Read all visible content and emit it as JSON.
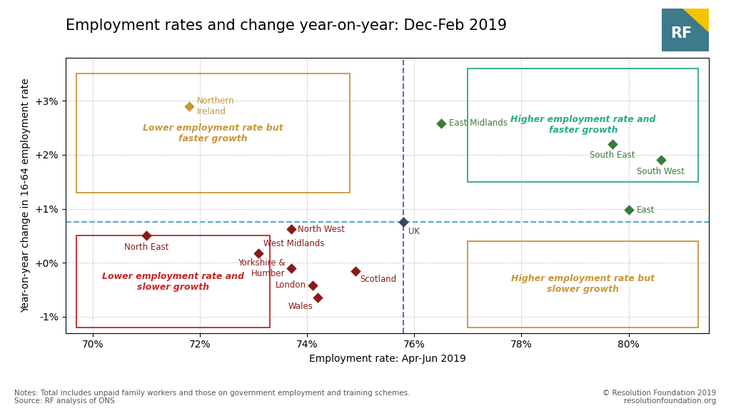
{
  "chart_data": {
    "type": "scatter",
    "title": "Employment rates and change year-on-year: Dec-Feb 2019",
    "x_label": "Employment rate: Apr-Jun 2019",
    "y_label": "Year-on-year change in 16-64 employment rate",
    "xlim": [
      0.695,
      0.815
    ],
    "ylim": [
      -0.013,
      0.038
    ],
    "xticks": [
      {
        "value": 0.7,
        "label": "70%"
      },
      {
        "value": 0.72,
        "label": "72%"
      },
      {
        "value": 0.74,
        "label": "74%"
      },
      {
        "value": 0.76,
        "label": "76%"
      },
      {
        "value": 0.78,
        "label": "78%"
      },
      {
        "value": 0.8,
        "label": "80%"
      }
    ],
    "yticks": [
      {
        "value": -0.01,
        "label": "-1%"
      },
      {
        "value": 0.0,
        "label": "+0%"
      },
      {
        "value": 0.01,
        "label": "+1%"
      },
      {
        "value": 0.02,
        "label": "+2%"
      },
      {
        "value": 0.03,
        "label": "+3%"
      }
    ],
    "grid": true,
    "marker": "diamond",
    "points": [
      {
        "label": "Northern\nIreland",
        "x": 0.718,
        "y": 0.029,
        "color": "#c8973a"
      },
      {
        "label": "North East",
        "x": 0.71,
        "y": 0.005,
        "color": "#8b1a1a"
      },
      {
        "label": "North West",
        "x": 0.737,
        "y": 0.0062,
        "color": "#8b1a1a"
      },
      {
        "label": "West Midlands",
        "x": 0.731,
        "y": 0.0018,
        "color": "#8b1a1a"
      },
      {
        "label": "Yorkshire &\nHumber",
        "x": 0.737,
        "y": -0.001,
        "color": "#8b1a1a"
      },
      {
        "label": "London",
        "x": 0.741,
        "y": -0.0042,
        "color": "#8b1a1a"
      },
      {
        "label": "Wales",
        "x": 0.742,
        "y": -0.0065,
        "color": "#8b1a1a"
      },
      {
        "label": "Scotland",
        "x": 0.749,
        "y": -0.0015,
        "color": "#8b1a1a"
      },
      {
        "label": "East Midlands",
        "x": 0.765,
        "y": 0.0258,
        "color": "#3a7a3a"
      },
      {
        "label": "South East",
        "x": 0.797,
        "y": 0.022,
        "color": "#3a7a3a"
      },
      {
        "label": "South West",
        "x": 0.806,
        "y": 0.019,
        "color": "#3a7a3a"
      },
      {
        "label": "East",
        "x": 0.8,
        "y": 0.0098,
        "color": "#3a7a3a"
      },
      {
        "label": "UK",
        "x": 0.758,
        "y": 0.0075,
        "color": "#3a4a5a"
      }
    ],
    "reference_lines": [
      {
        "axis": "x",
        "value": 0.758,
        "color": "#7b5ea7",
        "line_style": "dashed"
      },
      {
        "axis": "y",
        "value": 0.0075,
        "color": "#55aadd",
        "line_style": "dashed"
      }
    ],
    "boxes": [
      {
        "text": "Lower employment rate but\nfaster growth",
        "x": [
          0.697,
          0.748
        ],
        "y": [
          0.013,
          0.035
        ],
        "color": "#c8973a"
      },
      {
        "text": "Higher employment rate and\nfaster growth",
        "x": [
          0.77,
          0.813
        ],
        "y": [
          0.015,
          0.036
        ],
        "color": "#2aaa8a"
      },
      {
        "text": "Lower employment rate and\nslower growth",
        "x": [
          0.697,
          0.733
        ],
        "y": [
          -0.012,
          0.005
        ],
        "color": "#cc2222"
      },
      {
        "text": "Higher employment rate but\nslower growth",
        "x": [
          0.77,
          0.813
        ],
        "y": [
          -0.012,
          0.004
        ],
        "color": "#c8973a"
      }
    ],
    "notes": "Notes: Total includes unpaid family workers and those on government employment and training schemes.\nSource: RF analysis of ONS",
    "copyright": "© Resolution Foundation 2019\nresolutionfoundation.org",
    "logo": {
      "text": "RF",
      "color": "#3d7a8a",
      "accent_color": "#f5c400"
    }
  }
}
